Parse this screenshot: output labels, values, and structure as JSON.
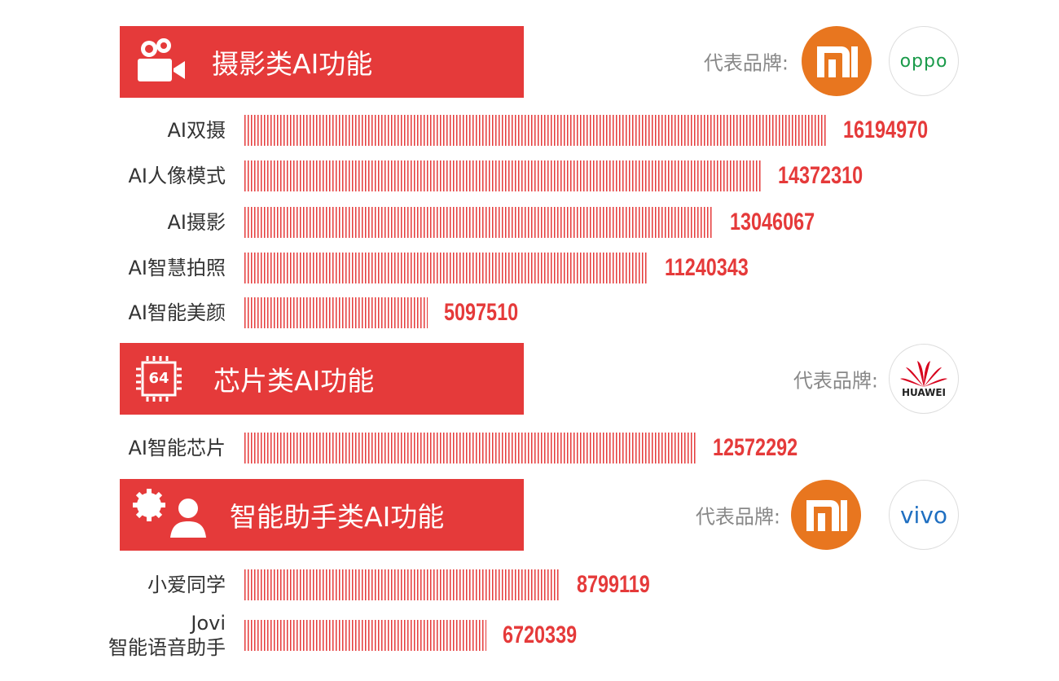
{
  "chart_data": [
    {
      "type": "bar",
      "title": "摄影类AI功能",
      "brand_label": "代表品牌:",
      "brands": [
        "oppo"
      ],
      "categories": [
        "AI双摄",
        "AI人像模式",
        "AI摄影",
        "AI智慧拍照",
        "AI智能美颜"
      ],
      "values": [
        16194970,
        14372310,
        13046067,
        11240343,
        5097510
      ],
      "color": "#e53a3a"
    },
    {
      "type": "bar",
      "title": "芯片类AI功能",
      "brand_label": "代表品牌:",
      "brands": [
        "HUAWEI"
      ],
      "icon_label": "64",
      "categories": [
        "AI智能芯片"
      ],
      "values": [
        12572292
      ],
      "color": "#e53a3a"
    },
    {
      "type": "bar",
      "title": "智能助手类AI功能",
      "brand_label": "代表品牌:",
      "brands": [
        "vivo"
      ],
      "categories": [
        "小爱同学",
        "Jovi\n智能语音助手"
      ],
      "values": [
        8799119,
        6720339
      ],
      "color": "#e53a3a"
    }
  ]
}
